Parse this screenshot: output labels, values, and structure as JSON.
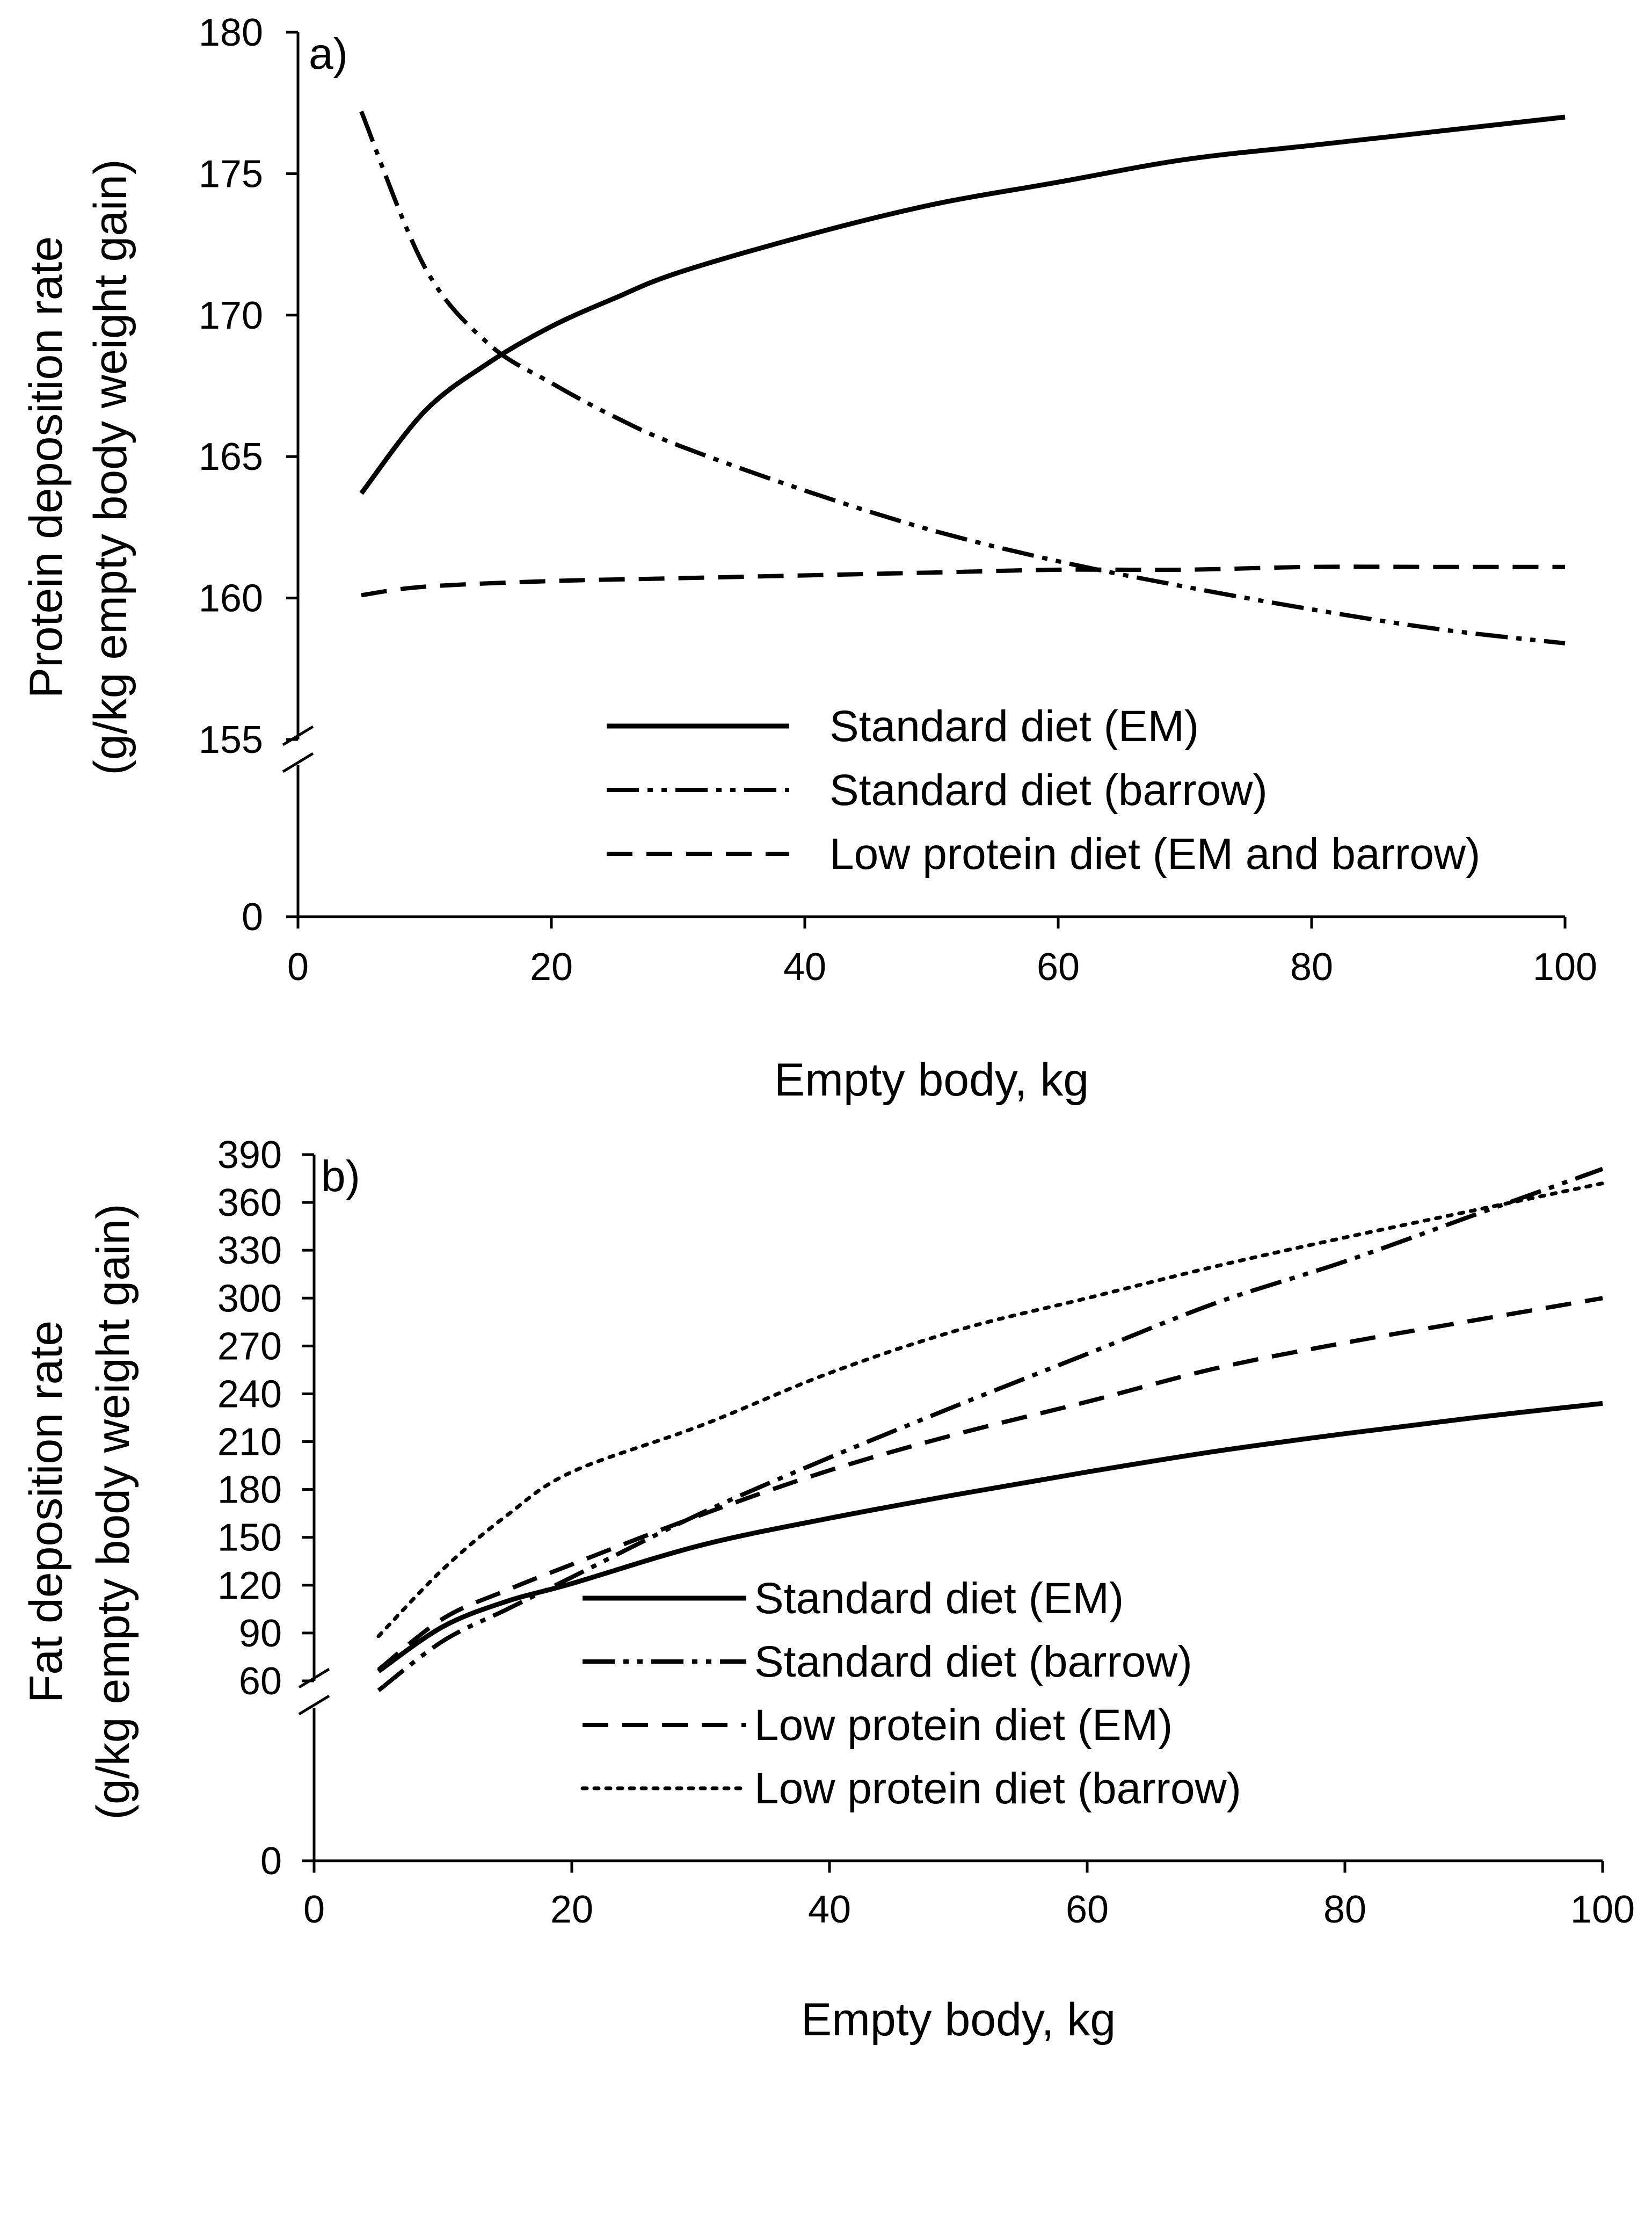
{
  "chart_data": [
    {
      "type": "line",
      "panel_label": "a)",
      "title": "",
      "xlabel": "Empty body, kg",
      "ylabel": [
        "Protein deposition rate",
        "(g/kg empty body weight gain)"
      ],
      "xlim": [
        0,
        100
      ],
      "ylim": [
        155,
        180
      ],
      "x_ticks": [
        "0",
        "20",
        "40",
        "60",
        "80",
        "100"
      ],
      "x_tick_values": [
        0,
        20,
        40,
        60,
        80,
        100
      ],
      "y_ticks": [
        "180",
        "175",
        "170",
        "165",
        "160",
        "155",
        "0"
      ],
      "y_tick_values": [
        180,
        175,
        170,
        165,
        160,
        155
      ],
      "y_zero_label": "0",
      "axis_break": true,
      "grid": false,
      "legend_position": "bottom-right",
      "series": [
        {
          "name": "Standard diet (EM)",
          "style": "solid",
          "x": [
            5,
            10,
            15,
            20,
            25,
            30,
            40,
            50,
            60,
            70,
            80,
            90,
            100
          ],
          "y": [
            163.7,
            166.6,
            168.3,
            169.6,
            170.6,
            171.5,
            172.8,
            173.9,
            174.7,
            175.5,
            176.0,
            176.5,
            177.0
          ]
        },
        {
          "name": "Standard diet (barrow)",
          "style": "dashdotdot",
          "x": [
            5,
            10,
            15,
            20,
            25,
            30,
            40,
            50,
            60,
            70,
            80,
            90,
            100
          ],
          "y": [
            177.2,
            171.7,
            169.0,
            167.6,
            166.4,
            165.4,
            163.8,
            162.4,
            161.3,
            160.4,
            159.6,
            158.9,
            158.4
          ]
        },
        {
          "name": "Low protein diet (EM and barrow)",
          "style": "dashed",
          "x": [
            5,
            10,
            20,
            30,
            40,
            50,
            60,
            70,
            80,
            90,
            100
          ],
          "y": [
            160.1,
            160.4,
            160.6,
            160.7,
            160.8,
            160.9,
            161.0,
            161.0,
            161.1,
            161.1,
            161.1
          ]
        }
      ]
    },
    {
      "type": "line",
      "panel_label": "b)",
      "title": "",
      "xlabel": "Empty body, kg",
      "ylabel": [
        "Fat deposition rate",
        "(g/kg empty body weight gain)"
      ],
      "xlim": [
        0,
        100
      ],
      "ylim": [
        60,
        390
      ],
      "x_ticks": [
        "0",
        "20",
        "40",
        "60",
        "80",
        "100"
      ],
      "x_tick_values": [
        0,
        20,
        40,
        60,
        80,
        100
      ],
      "y_ticks": [
        "390",
        "360",
        "330",
        "300",
        "270",
        "240",
        "210",
        "180",
        "150",
        "120",
        "90",
        "60",
        "0"
      ],
      "y_tick_values": [
        390,
        360,
        330,
        300,
        270,
        240,
        210,
        180,
        150,
        120,
        90,
        60
      ],
      "y_zero_label": "0",
      "axis_break": true,
      "grid": false,
      "legend_position": "bottom-right",
      "series": [
        {
          "name": "Standard diet (EM)",
          "style": "solid",
          "x": [
            5,
            10,
            15,
            20,
            30,
            40,
            50,
            60,
            70,
            80,
            90,
            100
          ],
          "y": [
            66,
            94,
            110,
            121,
            145,
            162,
            177,
            191,
            204,
            215,
            225,
            234
          ]
        },
        {
          "name": "Standard diet (barrow)",
          "style": "dashdotdot",
          "x": [
            5,
            10,
            15,
            20,
            30,
            40,
            50,
            60,
            70,
            80,
            90,
            100
          ],
          "y": [
            54,
            85,
            105,
            125,
            165,
            200,
            233,
            265,
            297,
            323,
            352,
            381
          ]
        },
        {
          "name": "Low protein diet (EM)",
          "style": "dashed",
          "x": [
            5,
            10,
            15,
            20,
            30,
            40,
            50,
            60,
            70,
            80,
            90,
            100
          ],
          "y": [
            67,
            99,
            117,
            133,
            164,
            192,
            215,
            235,
            256,
            272,
            286,
            300
          ]
        },
        {
          "name": "Low protein diet (barrow)",
          "style": "dotted",
          "x": [
            5,
            10,
            15,
            20,
            30,
            40,
            50,
            60,
            70,
            80,
            90,
            100
          ],
          "y": [
            88,
            130,
            164,
            191,
            220,
            253,
            280,
            300,
            320,
            338,
            355,
            372
          ]
        }
      ]
    }
  ]
}
